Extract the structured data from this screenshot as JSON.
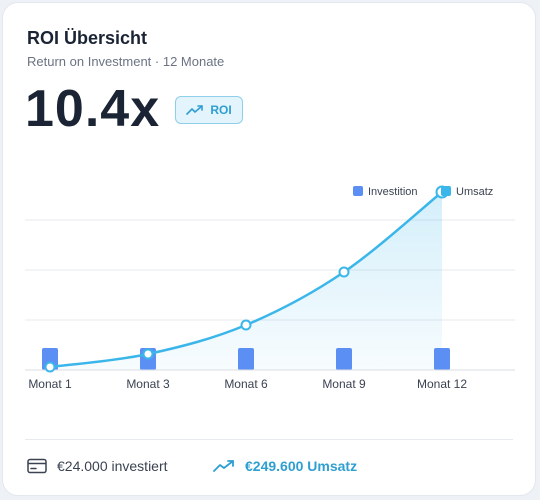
{
  "card": {
    "title": "ROI Übersicht",
    "subtitle": "Return on Investment · 12 Monate",
    "big_value": "10.4x",
    "badge_label": "ROI",
    "badge_icon": "trending-up-icon"
  },
  "footer": {
    "invested_text": "€24.000 investiert",
    "invested_icon": "wallet-icon",
    "revenue_text": "€249.600 Umsatz",
    "revenue_icon": "trending-up-icon"
  },
  "colors": {
    "investition": "#5b8ff4",
    "umsatz": "#3bb6ea",
    "text_dark": "#1b2434",
    "accent": "#2f9fd1"
  },
  "chart_data": {
    "type": "bar",
    "categories": [
      "Monat 1",
      "Monat 3",
      "Monat 6",
      "Monat 9",
      "Monat 12"
    ],
    "series": [
      {
        "name": "Investition",
        "type": "bar",
        "values": [
          2,
          2,
          2,
          2,
          2
        ]
      },
      {
        "name": "Umsatz",
        "type": "line",
        "values": [
          0.3,
          1.6,
          4.5,
          9.8,
          17.8
        ]
      }
    ],
    "title": "",
    "xlabel": "",
    "ylabel": "",
    "ylim": [
      0,
      20
    ],
    "grid": true,
    "legend_position": "top-right"
  }
}
